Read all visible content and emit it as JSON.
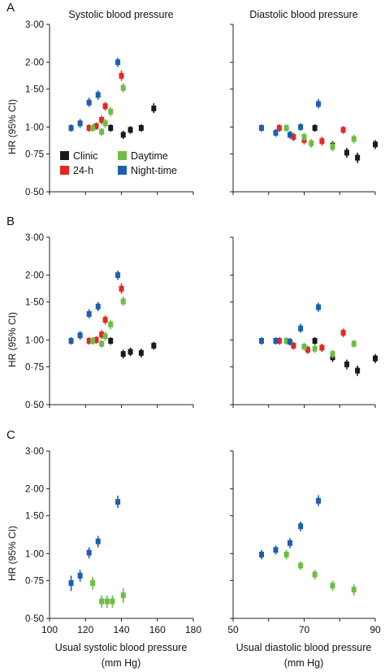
{
  "legend": {
    "items": [
      {
        "label": "Clinic",
        "color": "#1a1a1a"
      },
      {
        "label": "24-h",
        "color": "#e8251f"
      },
      {
        "label": "Daytime",
        "color": "#6cbd45"
      },
      {
        "label": "Night-time",
        "color": "#1c5fb0"
      }
    ],
    "placement": "inside panel A left, lower middle"
  },
  "chart_data": [
    {
      "type": "scatter",
      "panel": "A",
      "title": "Systolic blood pressure",
      "ylabel": "HR (95% CI)",
      "xlabel": "",
      "y_scale": "log",
      "ylim": [
        0.5,
        3.0
      ],
      "yticks": [
        "0·50",
        "0·75",
        "1·00",
        "1·50",
        "2·00",
        "3·00"
      ],
      "xlim": [
        100,
        180
      ],
      "xticks": [],
      "series": [
        {
          "name": "Clinic",
          "color": "#1a1a1a",
          "points": [
            {
              "x": 134,
              "y": 0.99,
              "lo": 0.95,
              "hi": 1.03
            },
            {
              "x": 141,
              "y": 0.92,
              "lo": 0.88,
              "hi": 0.96
            },
            {
              "x": 145,
              "y": 0.97,
              "lo": 0.93,
              "hi": 1.01
            },
            {
              "x": 151,
              "y": 0.99,
              "lo": 0.95,
              "hi": 1.03
            },
            {
              "x": 158,
              "y": 1.22,
              "lo": 1.16,
              "hi": 1.29
            }
          ]
        },
        {
          "name": "24-h",
          "color": "#e8251f",
          "points": [
            {
              "x": 122,
              "y": 0.99,
              "lo": 0.95,
              "hi": 1.03
            },
            {
              "x": 126,
              "y": 1.01,
              "lo": 0.97,
              "hi": 1.05
            },
            {
              "x": 129,
              "y": 1.08,
              "lo": 1.03,
              "hi": 1.13
            },
            {
              "x": 131,
              "y": 1.25,
              "lo": 1.19,
              "hi": 1.31
            },
            {
              "x": 140,
              "y": 1.73,
              "lo": 1.64,
              "hi": 1.83
            }
          ]
        },
        {
          "name": "Daytime",
          "color": "#6cbd45",
          "points": [
            {
              "x": 124,
              "y": 0.99,
              "lo": 0.95,
              "hi": 1.03
            },
            {
              "x": 129,
              "y": 0.95,
              "lo": 0.91,
              "hi": 0.99
            },
            {
              "x": 131,
              "y": 1.04,
              "lo": 0.99,
              "hi": 1.09
            },
            {
              "x": 134,
              "y": 1.18,
              "lo": 1.12,
              "hi": 1.24
            },
            {
              "x": 141,
              "y": 1.52,
              "lo": 1.45,
              "hi": 1.6
            }
          ]
        },
        {
          "name": "Night-time",
          "color": "#1c5fb0",
          "points": [
            {
              "x": 112,
              "y": 0.99,
              "lo": 0.95,
              "hi": 1.03
            },
            {
              "x": 117,
              "y": 1.04,
              "lo": 0.99,
              "hi": 1.09
            },
            {
              "x": 122,
              "y": 1.3,
              "lo": 1.24,
              "hi": 1.37
            },
            {
              "x": 127,
              "y": 1.41,
              "lo": 1.34,
              "hi": 1.48
            },
            {
              "x": 138,
              "y": 2.0,
              "lo": 1.9,
              "hi": 2.1
            }
          ]
        }
      ]
    },
    {
      "type": "scatter",
      "panel": "A",
      "title": "Diastolic blood pressure",
      "ylabel": "",
      "xlabel": "",
      "y_scale": "log",
      "ylim": [
        0.5,
        3.0
      ],
      "xlim": [
        50,
        90
      ],
      "xticks": [],
      "series": [
        {
          "name": "Clinic",
          "color": "#1a1a1a",
          "points": [
            {
              "x": 73,
              "y": 0.99,
              "lo": 0.95,
              "hi": 1.03
            },
            {
              "x": 78,
              "y": 0.82,
              "lo": 0.78,
              "hi": 0.86
            },
            {
              "x": 82,
              "y": 0.76,
              "lo": 0.72,
              "hi": 0.8
            },
            {
              "x": 85,
              "y": 0.72,
              "lo": 0.68,
              "hi": 0.76
            },
            {
              "x": 90,
              "y": 0.83,
              "lo": 0.79,
              "hi": 0.87
            }
          ]
        },
        {
          "name": "24-h",
          "color": "#e8251f",
          "points": [
            {
              "x": 63,
              "y": 0.99,
              "lo": 0.95,
              "hi": 1.03
            },
            {
              "x": 67,
              "y": 0.9,
              "lo": 0.86,
              "hi": 0.94
            },
            {
              "x": 70,
              "y": 0.87,
              "lo": 0.83,
              "hi": 0.91
            },
            {
              "x": 75,
              "y": 0.86,
              "lo": 0.82,
              "hi": 0.9
            },
            {
              "x": 81,
              "y": 0.97,
              "lo": 0.93,
              "hi": 1.01
            }
          ]
        },
        {
          "name": "Daytime",
          "color": "#6cbd45",
          "points": [
            {
              "x": 65,
              "y": 0.99,
              "lo": 0.95,
              "hi": 1.03
            },
            {
              "x": 70,
              "y": 0.9,
              "lo": 0.86,
              "hi": 0.94
            },
            {
              "x": 72,
              "y": 0.84,
              "lo": 0.8,
              "hi": 0.88
            },
            {
              "x": 78,
              "y": 0.81,
              "lo": 0.77,
              "hi": 0.85
            },
            {
              "x": 84,
              "y": 0.88,
              "lo": 0.84,
              "hi": 0.92
            }
          ]
        },
        {
          "name": "Night-time",
          "color": "#1c5fb0",
          "points": [
            {
              "x": 58,
              "y": 0.99,
              "lo": 0.95,
              "hi": 1.03
            },
            {
              "x": 62,
              "y": 0.94,
              "lo": 0.9,
              "hi": 0.98
            },
            {
              "x": 66,
              "y": 0.92,
              "lo": 0.88,
              "hi": 0.96
            },
            {
              "x": 69,
              "y": 1.0,
              "lo": 0.96,
              "hi": 1.04
            },
            {
              "x": 74,
              "y": 1.28,
              "lo": 1.22,
              "hi": 1.35
            }
          ]
        }
      ]
    },
    {
      "type": "scatter",
      "panel": "B",
      "title": "",
      "ylabel": "HR (95% CI)",
      "xlabel": "",
      "y_scale": "log",
      "ylim": [
        0.5,
        3.0
      ],
      "yticks": [
        "0·50",
        "0·75",
        "1·00",
        "1·50",
        "2·00",
        "3·00"
      ],
      "xlim": [
        100,
        180
      ],
      "xticks": [],
      "series": [
        {
          "name": "Clinic",
          "color": "#1a1a1a",
          "points": [
            {
              "x": 134,
              "y": 0.99,
              "lo": 0.95,
              "hi": 1.03
            },
            {
              "x": 141,
              "y": 0.86,
              "lo": 0.82,
              "hi": 0.9
            },
            {
              "x": 145,
              "y": 0.88,
              "lo": 0.84,
              "hi": 0.92
            },
            {
              "x": 151,
              "y": 0.87,
              "lo": 0.83,
              "hi": 0.91
            },
            {
              "x": 158,
              "y": 0.94,
              "lo": 0.9,
              "hi": 0.98
            }
          ]
        },
        {
          "name": "24-h",
          "color": "#e8251f",
          "points": [
            {
              "x": 122,
              "y": 0.99,
              "lo": 0.95,
              "hi": 1.03
            },
            {
              "x": 126,
              "y": 1.0,
              "lo": 0.96,
              "hi": 1.04
            },
            {
              "x": 129,
              "y": 1.06,
              "lo": 1.01,
              "hi": 1.11
            },
            {
              "x": 131,
              "y": 1.24,
              "lo": 1.18,
              "hi": 1.3
            },
            {
              "x": 140,
              "y": 1.73,
              "lo": 1.64,
              "hi": 1.83
            }
          ]
        },
        {
          "name": "Daytime",
          "color": "#6cbd45",
          "points": [
            {
              "x": 124,
              "y": 0.99,
              "lo": 0.95,
              "hi": 1.03
            },
            {
              "x": 129,
              "y": 0.96,
              "lo": 0.92,
              "hi": 1.0
            },
            {
              "x": 131,
              "y": 1.04,
              "lo": 0.99,
              "hi": 1.09
            },
            {
              "x": 134,
              "y": 1.18,
              "lo": 1.12,
              "hi": 1.24
            },
            {
              "x": 141,
              "y": 1.51,
              "lo": 1.44,
              "hi": 1.59
            }
          ]
        },
        {
          "name": "Night-time",
          "color": "#1c5fb0",
          "points": [
            {
              "x": 112,
              "y": 0.99,
              "lo": 0.95,
              "hi": 1.03
            },
            {
              "x": 117,
              "y": 1.05,
              "lo": 1.0,
              "hi": 1.1
            },
            {
              "x": 122,
              "y": 1.32,
              "lo": 1.26,
              "hi": 1.39
            },
            {
              "x": 127,
              "y": 1.43,
              "lo": 1.36,
              "hi": 1.5
            },
            {
              "x": 138,
              "y": 2.0,
              "lo": 1.9,
              "hi": 2.1
            }
          ]
        }
      ]
    },
    {
      "type": "scatter",
      "panel": "B",
      "title": "",
      "ylabel": "",
      "xlabel": "",
      "y_scale": "log",
      "ylim": [
        0.5,
        3.0
      ],
      "xlim": [
        50,
        90
      ],
      "xticks": [],
      "series": [
        {
          "name": "Clinic",
          "color": "#1a1a1a",
          "points": [
            {
              "x": 73,
              "y": 0.99,
              "lo": 0.95,
              "hi": 1.03
            },
            {
              "x": 78,
              "y": 0.83,
              "lo": 0.79,
              "hi": 0.87
            },
            {
              "x": 82,
              "y": 0.77,
              "lo": 0.73,
              "hi": 0.81
            },
            {
              "x": 85,
              "y": 0.72,
              "lo": 0.68,
              "hi": 0.76
            },
            {
              "x": 90,
              "y": 0.82,
              "lo": 0.78,
              "hi": 0.86
            }
          ]
        },
        {
          "name": "24-h",
          "color": "#e8251f",
          "points": [
            {
              "x": 63,
              "y": 0.99,
              "lo": 0.95,
              "hi": 1.03
            },
            {
              "x": 67,
              "y": 0.94,
              "lo": 0.9,
              "hi": 0.98
            },
            {
              "x": 71,
              "y": 0.9,
              "lo": 0.86,
              "hi": 0.94
            },
            {
              "x": 75,
              "y": 0.92,
              "lo": 0.88,
              "hi": 0.96
            },
            {
              "x": 81,
              "y": 1.08,
              "lo": 1.03,
              "hi": 1.13
            }
          ]
        },
        {
          "name": "Daytime",
          "color": "#6cbd45",
          "points": [
            {
              "x": 65,
              "y": 0.99,
              "lo": 0.95,
              "hi": 1.03
            },
            {
              "x": 70,
              "y": 0.93,
              "lo": 0.89,
              "hi": 0.97
            },
            {
              "x": 73,
              "y": 0.91,
              "lo": 0.87,
              "hi": 0.95
            },
            {
              "x": 78,
              "y": 0.86,
              "lo": 0.82,
              "hi": 0.9
            },
            {
              "x": 84,
              "y": 0.96,
              "lo": 0.92,
              "hi": 1.0
            }
          ]
        },
        {
          "name": "Night-time",
          "color": "#1c5fb0",
          "points": [
            {
              "x": 58,
              "y": 0.99,
              "lo": 0.95,
              "hi": 1.03
            },
            {
              "x": 62,
              "y": 0.99,
              "lo": 0.95,
              "hi": 1.03
            },
            {
              "x": 66,
              "y": 0.98,
              "lo": 0.94,
              "hi": 1.02
            },
            {
              "x": 69,
              "y": 1.13,
              "lo": 1.08,
              "hi": 1.19
            },
            {
              "x": 74,
              "y": 1.42,
              "lo": 1.35,
              "hi": 1.49
            }
          ]
        }
      ]
    },
    {
      "type": "scatter",
      "panel": "C",
      "title": "",
      "ylabel": "HR (95% CI)",
      "xlabel": "Usual systolic blood pressure (mm Hg)",
      "y_scale": "log",
      "ylim": [
        0.5,
        3.0
      ],
      "yticks": [
        "0·50",
        "0·75",
        "1·00",
        "1·50",
        "2·00",
        "3·00"
      ],
      "xlim": [
        100,
        180
      ],
      "xticks": [
        "100",
        "120",
        "140",
        "160",
        "180"
      ],
      "series": [
        {
          "name": "Daytime",
          "color": "#6cbd45",
          "points": [
            {
              "x": 124,
              "y": 0.73,
              "lo": 0.68,
              "hi": 0.78
            },
            {
              "x": 129,
              "y": 0.6,
              "lo": 0.56,
              "hi": 0.64
            },
            {
              "x": 132,
              "y": 0.6,
              "lo": 0.56,
              "hi": 0.64
            },
            {
              "x": 135,
              "y": 0.6,
              "lo": 0.56,
              "hi": 0.64
            },
            {
              "x": 141,
              "y": 0.64,
              "lo": 0.59,
              "hi": 0.69
            }
          ]
        },
        {
          "name": "Night-time",
          "color": "#1c5fb0",
          "points": [
            {
              "x": 112,
              "y": 0.73,
              "lo": 0.67,
              "hi": 0.79
            },
            {
              "x": 117,
              "y": 0.79,
              "lo": 0.74,
              "hi": 0.84
            },
            {
              "x": 122,
              "y": 1.01,
              "lo": 0.95,
              "hi": 1.07
            },
            {
              "x": 127,
              "y": 1.14,
              "lo": 1.07,
              "hi": 1.21
            },
            {
              "x": 138,
              "y": 1.74,
              "lo": 1.63,
              "hi": 1.86
            }
          ]
        }
      ]
    },
    {
      "type": "scatter",
      "panel": "C",
      "title": "",
      "ylabel": "",
      "xlabel": "Usual diastolic blood pressure (mm Hg)",
      "y_scale": "log",
      "ylim": [
        0.5,
        3.0
      ],
      "xlim": [
        50,
        90
      ],
      "xticks": [
        "50",
        "70",
        "90"
      ],
      "series": [
        {
          "name": "Daytime",
          "color": "#6cbd45",
          "points": [
            {
              "x": 65,
              "y": 0.99,
              "lo": 0.94,
              "hi": 1.04
            },
            {
              "x": 69,
              "y": 0.88,
              "lo": 0.84,
              "hi": 0.92
            },
            {
              "x": 73,
              "y": 0.8,
              "lo": 0.76,
              "hi": 0.84
            },
            {
              "x": 78,
              "y": 0.71,
              "lo": 0.67,
              "hi": 0.75
            },
            {
              "x": 84,
              "y": 0.68,
              "lo": 0.64,
              "hi": 0.72
            }
          ]
        },
        {
          "name": "Night-time",
          "color": "#1c5fb0",
          "points": [
            {
              "x": 58,
              "y": 0.99,
              "lo": 0.94,
              "hi": 1.04
            },
            {
              "x": 62,
              "y": 1.04,
              "lo": 0.99,
              "hi": 1.09
            },
            {
              "x": 66,
              "y": 1.12,
              "lo": 1.06,
              "hi": 1.18
            },
            {
              "x": 69,
              "y": 1.34,
              "lo": 1.27,
              "hi": 1.41
            },
            {
              "x": 74,
              "y": 1.76,
              "lo": 1.66,
              "hi": 1.87
            }
          ]
        }
      ]
    }
  ],
  "panel_labels": [
    "A",
    "B",
    "C"
  ],
  "headers": {
    "systolic": "Systolic blood pressure",
    "diastolic": "Diastolic blood pressure"
  },
  "ylabel": "HR (95% CI)",
  "xaxis_titles": {
    "systolic_line1": "Usual systolic blood pressure",
    "systolic_line2": "(mm Hg)",
    "diastolic_line1": "Usual diastolic blood pressure",
    "diastolic_line2": "(mm Hg)"
  }
}
